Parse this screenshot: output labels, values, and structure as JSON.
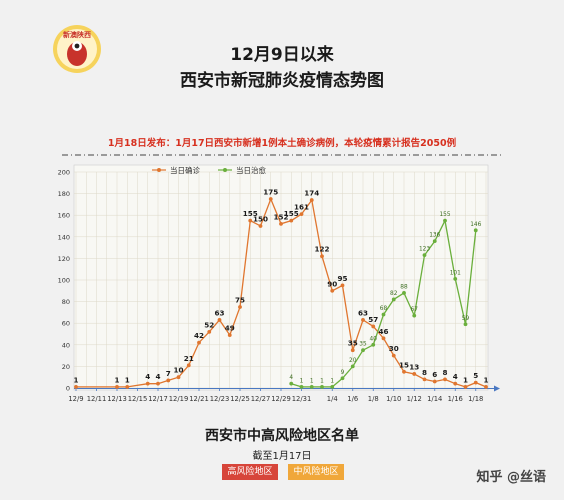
{
  "logo": {
    "text": "新澳陕西",
    "icon": "mascot-icon",
    "color": "#c8332b"
  },
  "title_line1": "12月9日以来",
  "title_line2": "西安市新冠肺炎疫情态势图",
  "announcement": "1月18日发布：1月17日西安市新增1例本土确诊病例，本轮疫情累计报告2050例",
  "bottom_title": "西安市中高风险地区名单",
  "deadline": "截至1月17日",
  "buttons": {
    "high": "高风险地区",
    "medium": "中风险地区"
  },
  "watermark": "知乎 @丝语",
  "colors": {
    "confirmed": "#e0762f",
    "cured": "#6aaf3c",
    "high": "#d7453a",
    "medium": "#f0a73a"
  },
  "chart_data": {
    "type": "line",
    "ylim": [
      0,
      200
    ],
    "yticks": [
      0,
      20,
      40,
      60,
      80,
      100,
      120,
      140,
      160,
      180,
      200
    ],
    "x_tick_labels": [
      "12/9",
      "12/11",
      "12/13",
      "12/15",
      "12/17",
      "12/19",
      "12/21",
      "12/23",
      "12/25",
      "12/27",
      "12/29",
      "12/31",
      "1/4",
      "1/6",
      "1/8",
      "1/10",
      "1/12",
      "1/14",
      "1/16",
      "1/18"
    ],
    "x_tick_days": [
      0,
      2,
      4,
      6,
      8,
      10,
      12,
      14,
      16,
      18,
      20,
      22,
      25,
      27,
      29,
      31,
      33,
      35,
      37,
      39
    ],
    "series": [
      {
        "name": "当日确诊",
        "color": "#e0762f",
        "points": [
          [
            0,
            1
          ],
          [
            4,
            1
          ],
          [
            5,
            1
          ],
          [
            7,
            4
          ],
          [
            8,
            4
          ],
          [
            9,
            7
          ],
          [
            10,
            10
          ],
          [
            11,
            21
          ],
          [
            12,
            42
          ],
          [
            13,
            52
          ],
          [
            14,
            63
          ],
          [
            15,
            49
          ],
          [
            16,
            75
          ],
          [
            17,
            155
          ],
          [
            18,
            150
          ],
          [
            19,
            175
          ],
          [
            20,
            152
          ],
          [
            21,
            155
          ],
          [
            22,
            161
          ],
          [
            23,
            174
          ],
          [
            24,
            122
          ],
          [
            25,
            90
          ],
          [
            26,
            95
          ],
          [
            27,
            35
          ],
          [
            28,
            63
          ],
          [
            29,
            57
          ],
          [
            30,
            46
          ],
          [
            31,
            30
          ],
          [
            32,
            15
          ],
          [
            33,
            13
          ],
          [
            34,
            8
          ],
          [
            35,
            6
          ],
          [
            36,
            8
          ],
          [
            37,
            4
          ],
          [
            38,
            1
          ],
          [
            39,
            5
          ],
          [
            40,
            1
          ]
        ]
      },
      {
        "name": "当日治愈",
        "color": "#6aaf3c",
        "points": [
          [
            21,
            4
          ],
          [
            22,
            1
          ],
          [
            23,
            1
          ],
          [
            24,
            1
          ],
          [
            25,
            1
          ],
          [
            26,
            9
          ],
          [
            27,
            20
          ],
          [
            28,
            35
          ],
          [
            29,
            40
          ],
          [
            30,
            68
          ],
          [
            31,
            82
          ],
          [
            32,
            88
          ],
          [
            33,
            67
          ],
          [
            34,
            123
          ],
          [
            35,
            136
          ],
          [
            36,
            155
          ],
          [
            37,
            101
          ],
          [
            38,
            59
          ],
          [
            39,
            146
          ]
        ]
      }
    ]
  }
}
